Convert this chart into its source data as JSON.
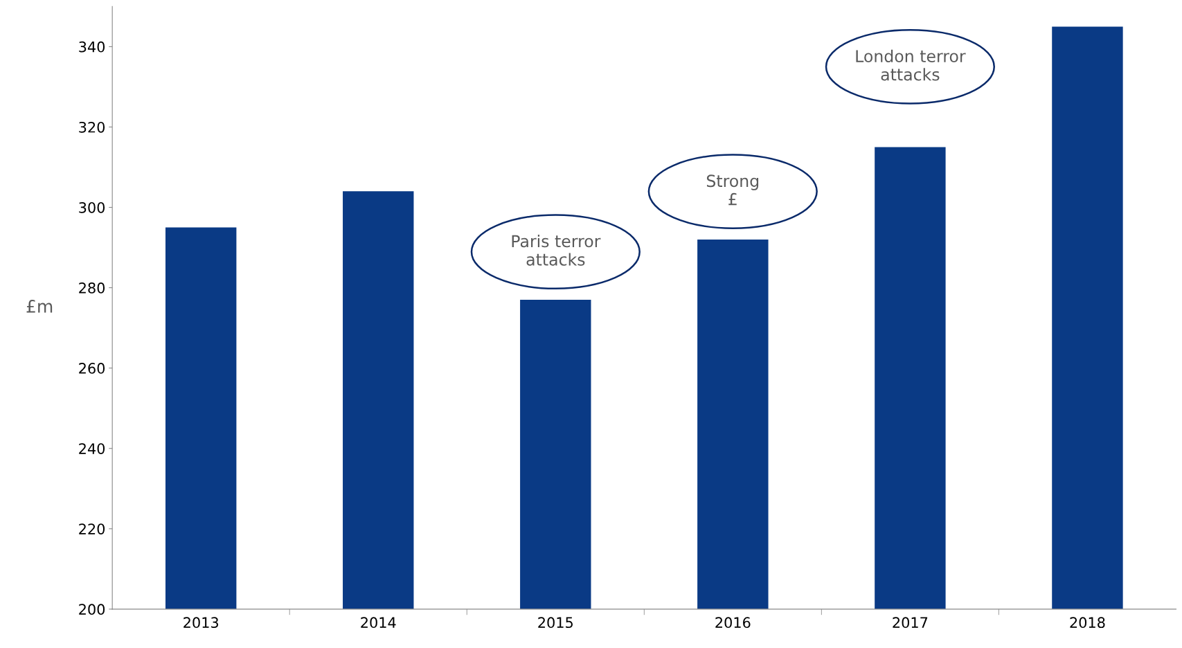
{
  "chart_data": {
    "type": "bar",
    "ylabel": "£m",
    "categories": [
      "2013",
      "2014",
      "2015",
      "2016",
      "2017",
      "2018"
    ],
    "values": [
      295,
      304,
      277,
      292,
      315,
      345
    ],
    "color": "#0a3a85",
    "ylim": [
      200,
      350
    ],
    "yticks": [
      200,
      220,
      240,
      260,
      280,
      300,
      320,
      340
    ],
    "grid": false,
    "legend": false,
    "annotations": [
      "Paris terror\nattacks",
      "Strong\n£",
      "London terror\nattacks"
    ]
  }
}
